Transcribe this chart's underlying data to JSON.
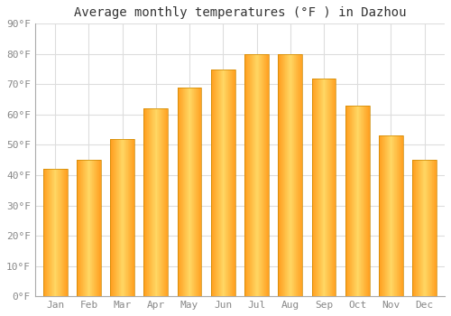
{
  "months": [
    "Jan",
    "Feb",
    "Mar",
    "Apr",
    "May",
    "Jun",
    "Jul",
    "Aug",
    "Sep",
    "Oct",
    "Nov",
    "Dec"
  ],
  "values": [
    42,
    45,
    52,
    62,
    69,
    75,
    80,
    80,
    72,
    63,
    53,
    45
  ],
  "bar_color_center": "#FFD060",
  "bar_color_edge": "#FFA020",
  "title": "Average monthly temperatures (°F ) in Dazhou",
  "ylim": [
    0,
    90
  ],
  "yticks": [
    0,
    10,
    20,
    30,
    40,
    50,
    60,
    70,
    80,
    90
  ],
  "background_color": "#FFFFFF",
  "outer_background": "#FFFFFF",
  "grid_color": "#DDDDDD",
  "title_fontsize": 10,
  "tick_fontsize": 8,
  "tick_color": "#888888",
  "bar_width": 0.72
}
